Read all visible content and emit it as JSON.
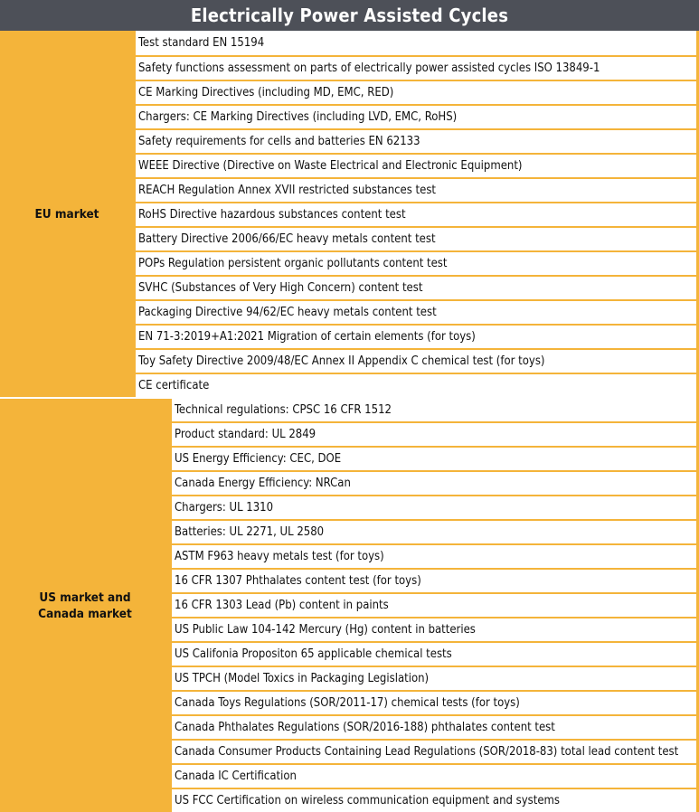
{
  "title": "Electrically Power Assisted Cycles",
  "sections": [
    {
      "label": "EU market",
      "items": [
        "Test standard EN 15194",
        "Safety functions assessment on parts of electrically power assisted cycles ISO 13849-1",
        "CE Marking Directives (including MD, EMC, RED)",
        "Chargers: CE Marking Directives (including LVD, EMC, RoHS)",
        "Safety requirements for cells and batteries EN 62133",
        "WEEE Directive (Directive on Waste Electrical and Electronic Equipment)",
        "REACH Regulation Annex XVII restricted substances test",
        "RoHS Directive hazardous substances content test",
        "Battery Directive 2006/66/EC heavy metals content test",
        "POPs Regulation persistent organic pollutants content test",
        "SVHC (Substances of Very High Concern) content test",
        "Packaging Directive 94/62/EC heavy metals content test",
        "EN 71-3:2019+A1:2021 Migration of certain elements (for toys)",
        "Toy Safety Directive 2009/48/EC Annex II Appendix C chemical test (for toys)",
        "CE certificate"
      ]
    },
    {
      "label": "US market and Canada market",
      "items": [
        "Technical regulations: CPSC 16 CFR 1512",
        "Product standard: UL 2849",
        "US Energy Efficiency: CEC, DOE",
        "Canada Energy Efficiency: NRCan",
        "Chargers: UL 1310",
        "Batteries: UL 2271, UL 2580",
        "ASTM F963 heavy metals test (for toys)",
        "16 CFR 1307 Phthalates content test (for toys)",
        "16 CFR 1303 Lead (Pb) content in paints",
        "US Public Law 104-142 Mercury (Hg) content in batteries",
        "US Califonia Propositon 65 applicable chemical tests",
        "US TPCH (Model Toxics in Packaging Legislation)",
        "Canada Toys Regulations (SOR/2011-17) chemical tests (for toys)",
        "Canada Phthalates Regulations (SOR/2016-188) phthalates content test",
        "Canada Consumer Products Containing Lead Regulations (SOR/2018-83) total lead content test",
        "Canada IC Certification",
        "US FCC Certification on wireless communication equipment and systems"
      ]
    }
  ],
  "colors": {
    "header_bg": "#4d5058",
    "accent": "#f4b43a"
  }
}
